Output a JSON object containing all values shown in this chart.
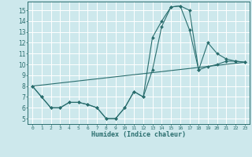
{
  "xlabel": "Humidex (Indice chaleur)",
  "xlim": [
    -0.5,
    23.5
  ],
  "ylim": [
    4.5,
    15.8
  ],
  "xticks": [
    0,
    1,
    2,
    3,
    4,
    5,
    6,
    7,
    8,
    9,
    10,
    11,
    12,
    13,
    14,
    15,
    16,
    17,
    18,
    19,
    20,
    21,
    22,
    23
  ],
  "yticks": [
    5,
    6,
    7,
    8,
    9,
    10,
    11,
    12,
    13,
    14,
    15
  ],
  "background_color": "#cde8ec",
  "grid_color": "#ffffff",
  "line_color": "#2a6e6e",
  "line1_x": [
    0,
    1,
    2,
    3,
    4,
    5,
    6,
    7,
    8,
    9,
    10,
    11,
    12,
    13,
    14,
    15,
    16,
    17,
    18,
    19,
    20,
    21,
    22,
    23
  ],
  "line1_y": [
    8.0,
    7.0,
    6.0,
    6.0,
    6.5,
    6.5,
    6.3,
    6.0,
    5.0,
    5.0,
    6.0,
    7.5,
    7.0,
    12.5,
    14.0,
    15.3,
    15.4,
    15.0,
    9.5,
    12.0,
    11.0,
    10.5,
    10.3,
    10.2
  ],
  "line2_x": [
    0,
    1,
    2,
    3,
    4,
    5,
    6,
    7,
    8,
    9,
    10,
    11,
    12,
    13,
    14,
    15,
    16,
    17,
    18,
    19,
    20,
    21,
    22,
    23
  ],
  "line2_y": [
    8.0,
    7.0,
    6.0,
    6.0,
    6.5,
    6.5,
    6.3,
    6.0,
    5.0,
    5.0,
    6.0,
    7.5,
    7.0,
    9.5,
    13.5,
    15.3,
    15.4,
    13.2,
    9.5,
    9.8,
    10.0,
    10.3,
    10.3,
    10.2
  ],
  "line3_x": [
    0,
    23
  ],
  "line3_y": [
    8.0,
    10.2
  ]
}
